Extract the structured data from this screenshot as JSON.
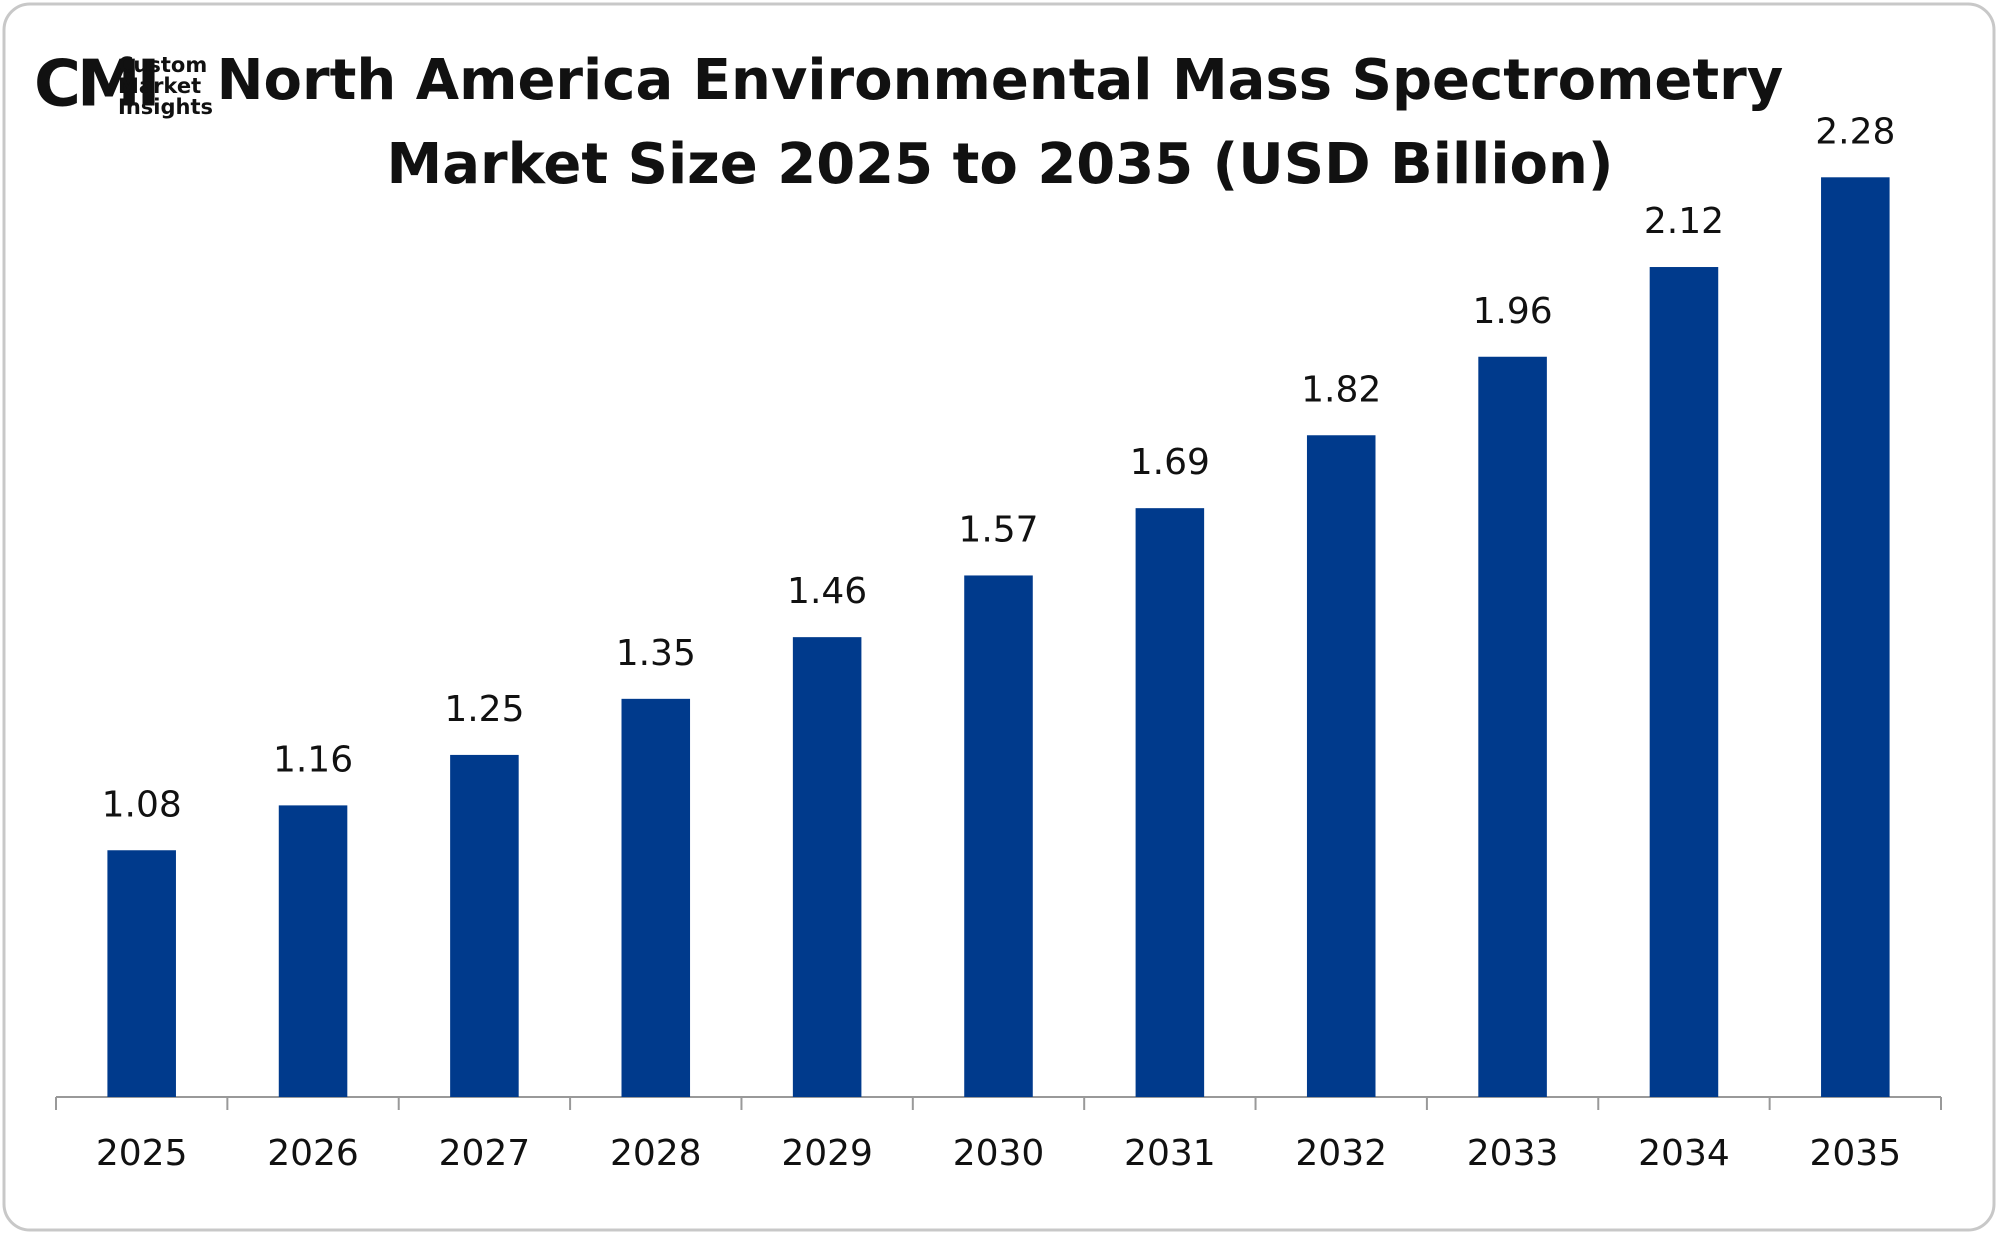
{
  "logo": {
    "mark": "CMI",
    "lines": [
      "Custom",
      "Market",
      "Insights"
    ]
  },
  "chart_data": {
    "type": "bar",
    "title": [
      "North America Environmental Mass Spectrometry",
      "Market Size 2025 to 2035 (USD Billion)"
    ],
    "categories": [
      "2025",
      "2026",
      "2027",
      "2028",
      "2029",
      "2030",
      "2031",
      "2032",
      "2033",
      "2034",
      "2035"
    ],
    "values": [
      1.08,
      1.16,
      1.25,
      1.35,
      1.46,
      1.57,
      1.69,
      1.82,
      1.96,
      2.12,
      2.28
    ],
    "color": "#003a8c",
    "ylim": [
      0.64,
      2.4
    ],
    "grid": false
  }
}
